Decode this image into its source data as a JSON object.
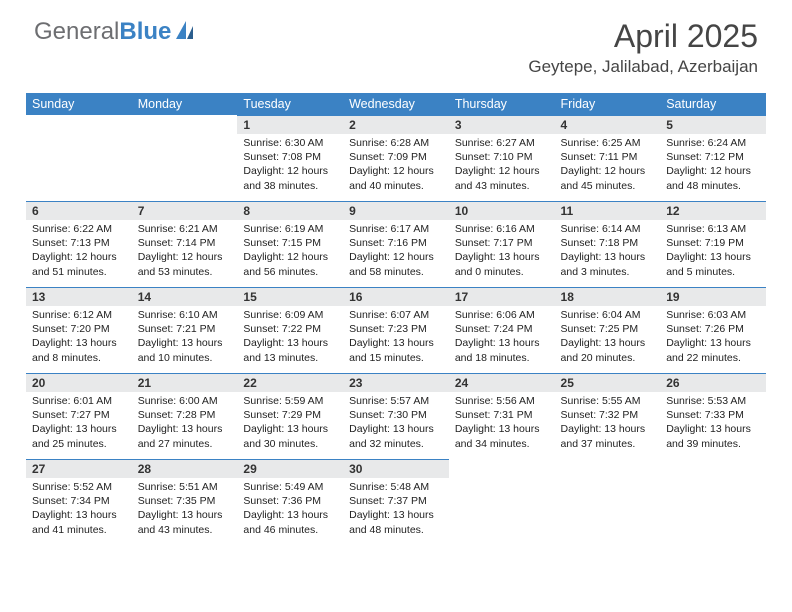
{
  "branding": {
    "logo_text_1": "General",
    "logo_text_2": "Blue",
    "logo_color_gray": "#6d6e71",
    "logo_color_blue": "#3b82c4"
  },
  "header": {
    "month_title": "April 2025",
    "location": "Geytepe, Jalilabad, Azerbaijan"
  },
  "colors": {
    "header_bg": "#3b82c4",
    "header_text": "#ffffff",
    "daynum_bg": "#e8e9ea",
    "page_bg": "#ffffff",
    "text": "#222222",
    "title_text": "#454545"
  },
  "weekdays": [
    "Sunday",
    "Monday",
    "Tuesday",
    "Wednesday",
    "Thursday",
    "Friday",
    "Saturday"
  ],
  "weeks": [
    [
      {
        "day": "",
        "sunrise": "",
        "sunset": "",
        "daylight": ""
      },
      {
        "day": "",
        "sunrise": "",
        "sunset": "",
        "daylight": ""
      },
      {
        "day": "1",
        "sunrise": "Sunrise: 6:30 AM",
        "sunset": "Sunset: 7:08 PM",
        "daylight": "Daylight: 12 hours and 38 minutes."
      },
      {
        "day": "2",
        "sunrise": "Sunrise: 6:28 AM",
        "sunset": "Sunset: 7:09 PM",
        "daylight": "Daylight: 12 hours and 40 minutes."
      },
      {
        "day": "3",
        "sunrise": "Sunrise: 6:27 AM",
        "sunset": "Sunset: 7:10 PM",
        "daylight": "Daylight: 12 hours and 43 minutes."
      },
      {
        "day": "4",
        "sunrise": "Sunrise: 6:25 AM",
        "sunset": "Sunset: 7:11 PM",
        "daylight": "Daylight: 12 hours and 45 minutes."
      },
      {
        "day": "5",
        "sunrise": "Sunrise: 6:24 AM",
        "sunset": "Sunset: 7:12 PM",
        "daylight": "Daylight: 12 hours and 48 minutes."
      }
    ],
    [
      {
        "day": "6",
        "sunrise": "Sunrise: 6:22 AM",
        "sunset": "Sunset: 7:13 PM",
        "daylight": "Daylight: 12 hours and 51 minutes."
      },
      {
        "day": "7",
        "sunrise": "Sunrise: 6:21 AM",
        "sunset": "Sunset: 7:14 PM",
        "daylight": "Daylight: 12 hours and 53 minutes."
      },
      {
        "day": "8",
        "sunrise": "Sunrise: 6:19 AM",
        "sunset": "Sunset: 7:15 PM",
        "daylight": "Daylight: 12 hours and 56 minutes."
      },
      {
        "day": "9",
        "sunrise": "Sunrise: 6:17 AM",
        "sunset": "Sunset: 7:16 PM",
        "daylight": "Daylight: 12 hours and 58 minutes."
      },
      {
        "day": "10",
        "sunrise": "Sunrise: 6:16 AM",
        "sunset": "Sunset: 7:17 PM",
        "daylight": "Daylight: 13 hours and 0 minutes."
      },
      {
        "day": "11",
        "sunrise": "Sunrise: 6:14 AM",
        "sunset": "Sunset: 7:18 PM",
        "daylight": "Daylight: 13 hours and 3 minutes."
      },
      {
        "day": "12",
        "sunrise": "Sunrise: 6:13 AM",
        "sunset": "Sunset: 7:19 PM",
        "daylight": "Daylight: 13 hours and 5 minutes."
      }
    ],
    [
      {
        "day": "13",
        "sunrise": "Sunrise: 6:12 AM",
        "sunset": "Sunset: 7:20 PM",
        "daylight": "Daylight: 13 hours and 8 minutes."
      },
      {
        "day": "14",
        "sunrise": "Sunrise: 6:10 AM",
        "sunset": "Sunset: 7:21 PM",
        "daylight": "Daylight: 13 hours and 10 minutes."
      },
      {
        "day": "15",
        "sunrise": "Sunrise: 6:09 AM",
        "sunset": "Sunset: 7:22 PM",
        "daylight": "Daylight: 13 hours and 13 minutes."
      },
      {
        "day": "16",
        "sunrise": "Sunrise: 6:07 AM",
        "sunset": "Sunset: 7:23 PM",
        "daylight": "Daylight: 13 hours and 15 minutes."
      },
      {
        "day": "17",
        "sunrise": "Sunrise: 6:06 AM",
        "sunset": "Sunset: 7:24 PM",
        "daylight": "Daylight: 13 hours and 18 minutes."
      },
      {
        "day": "18",
        "sunrise": "Sunrise: 6:04 AM",
        "sunset": "Sunset: 7:25 PM",
        "daylight": "Daylight: 13 hours and 20 minutes."
      },
      {
        "day": "19",
        "sunrise": "Sunrise: 6:03 AM",
        "sunset": "Sunset: 7:26 PM",
        "daylight": "Daylight: 13 hours and 22 minutes."
      }
    ],
    [
      {
        "day": "20",
        "sunrise": "Sunrise: 6:01 AM",
        "sunset": "Sunset: 7:27 PM",
        "daylight": "Daylight: 13 hours and 25 minutes."
      },
      {
        "day": "21",
        "sunrise": "Sunrise: 6:00 AM",
        "sunset": "Sunset: 7:28 PM",
        "daylight": "Daylight: 13 hours and 27 minutes."
      },
      {
        "day": "22",
        "sunrise": "Sunrise: 5:59 AM",
        "sunset": "Sunset: 7:29 PM",
        "daylight": "Daylight: 13 hours and 30 minutes."
      },
      {
        "day": "23",
        "sunrise": "Sunrise: 5:57 AM",
        "sunset": "Sunset: 7:30 PM",
        "daylight": "Daylight: 13 hours and 32 minutes."
      },
      {
        "day": "24",
        "sunrise": "Sunrise: 5:56 AM",
        "sunset": "Sunset: 7:31 PM",
        "daylight": "Daylight: 13 hours and 34 minutes."
      },
      {
        "day": "25",
        "sunrise": "Sunrise: 5:55 AM",
        "sunset": "Sunset: 7:32 PM",
        "daylight": "Daylight: 13 hours and 37 minutes."
      },
      {
        "day": "26",
        "sunrise": "Sunrise: 5:53 AM",
        "sunset": "Sunset: 7:33 PM",
        "daylight": "Daylight: 13 hours and 39 minutes."
      }
    ],
    [
      {
        "day": "27",
        "sunrise": "Sunrise: 5:52 AM",
        "sunset": "Sunset: 7:34 PM",
        "daylight": "Daylight: 13 hours and 41 minutes."
      },
      {
        "day": "28",
        "sunrise": "Sunrise: 5:51 AM",
        "sunset": "Sunset: 7:35 PM",
        "daylight": "Daylight: 13 hours and 43 minutes."
      },
      {
        "day": "29",
        "sunrise": "Sunrise: 5:49 AM",
        "sunset": "Sunset: 7:36 PM",
        "daylight": "Daylight: 13 hours and 46 minutes."
      },
      {
        "day": "30",
        "sunrise": "Sunrise: 5:48 AM",
        "sunset": "Sunset: 7:37 PM",
        "daylight": "Daylight: 13 hours and 48 minutes."
      },
      {
        "day": "",
        "sunrise": "",
        "sunset": "",
        "daylight": ""
      },
      {
        "day": "",
        "sunrise": "",
        "sunset": "",
        "daylight": ""
      },
      {
        "day": "",
        "sunrise": "",
        "sunset": "",
        "daylight": ""
      }
    ]
  ]
}
